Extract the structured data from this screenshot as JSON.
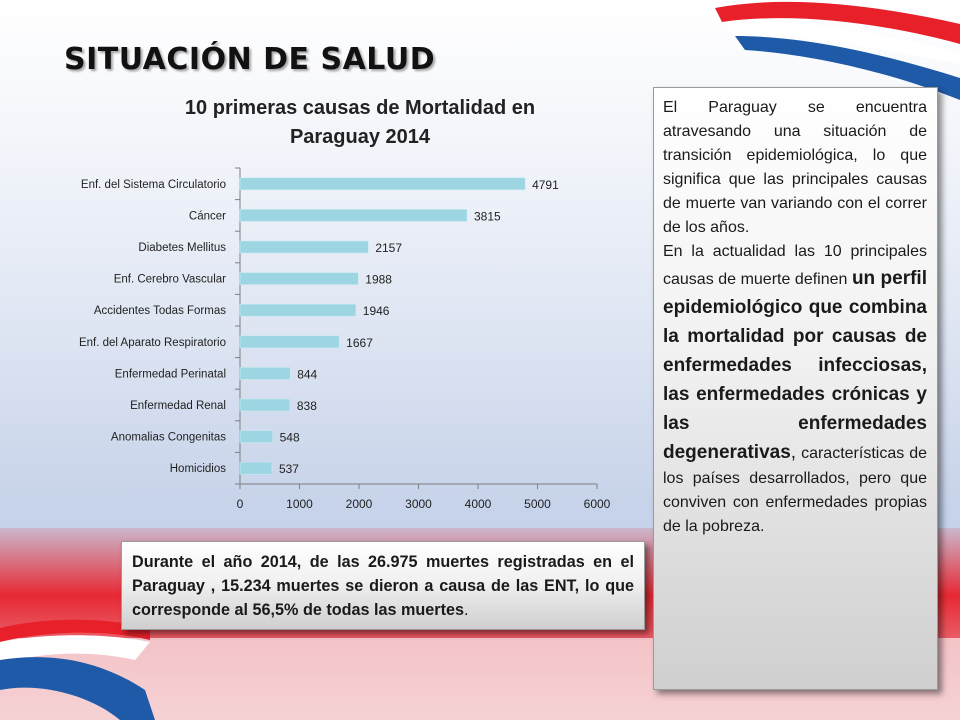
{
  "slide": {
    "title": "SITUACIÓN DE SALUD"
  },
  "chart_data": {
    "type": "bar",
    "orientation": "horizontal",
    "title": "10 primeras causas de Mortalidad en Paraguay 2014",
    "title_lines": [
      "10 primeras causas de Mortalidad en",
      "Paraguay 2014"
    ],
    "categories": [
      "Enf.  del Sistema Circulatorio",
      "Cáncer",
      "Diabetes Mellitus",
      "Enf. Cerebro Vascular",
      "Accidentes Todas Formas",
      "Enf. del Aparato Respiratorio",
      "Enfermedad Perinatal",
      "Enfermedad Renal",
      "Anomalias Congenitas",
      "Homicidios"
    ],
    "values": [
      4791,
      3815,
      2157,
      1988,
      1946,
      1667,
      844,
      838,
      548,
      537
    ],
    "xlim": [
      0,
      6000
    ],
    "xticks": [
      0,
      1000,
      2000,
      3000,
      4000,
      5000,
      6000
    ],
    "grid": false,
    "legend": "none",
    "bar_color": "#9dd6e2",
    "data_labels": true
  },
  "bottom_box": {
    "text": "Durante el año 2014, de las 26.975 muertes registradas en el Paraguay , 15.234 muertes se dieron a causa de las ENT, lo que corresponde  al 56,5% de todas las muertes",
    "end": "."
  },
  "side_box": {
    "p1": "El Paraguay se encuentra atravesando una situación de transición epidemiológica, lo que significa que las principales causas de muerte van variando con el correr de los años.",
    "p2_intro": " En la actualidad las 10 principales causas de muerte definen ",
    "p2_bold": "un perfil epidemiológico que combina la mortalidad por causas de enfermedades infecciosas, las enfermedades crónicas y las enfermedades degenerativas",
    "p2_comma": ",",
    "p2_end": " características de los  países desarrollados, pero que conviven con enfermedades propias de la pobreza."
  },
  "colors": {
    "flag_red": "#e8202a",
    "flag_blue": "#1f5aa8",
    "flag_white": "#ffffff"
  }
}
